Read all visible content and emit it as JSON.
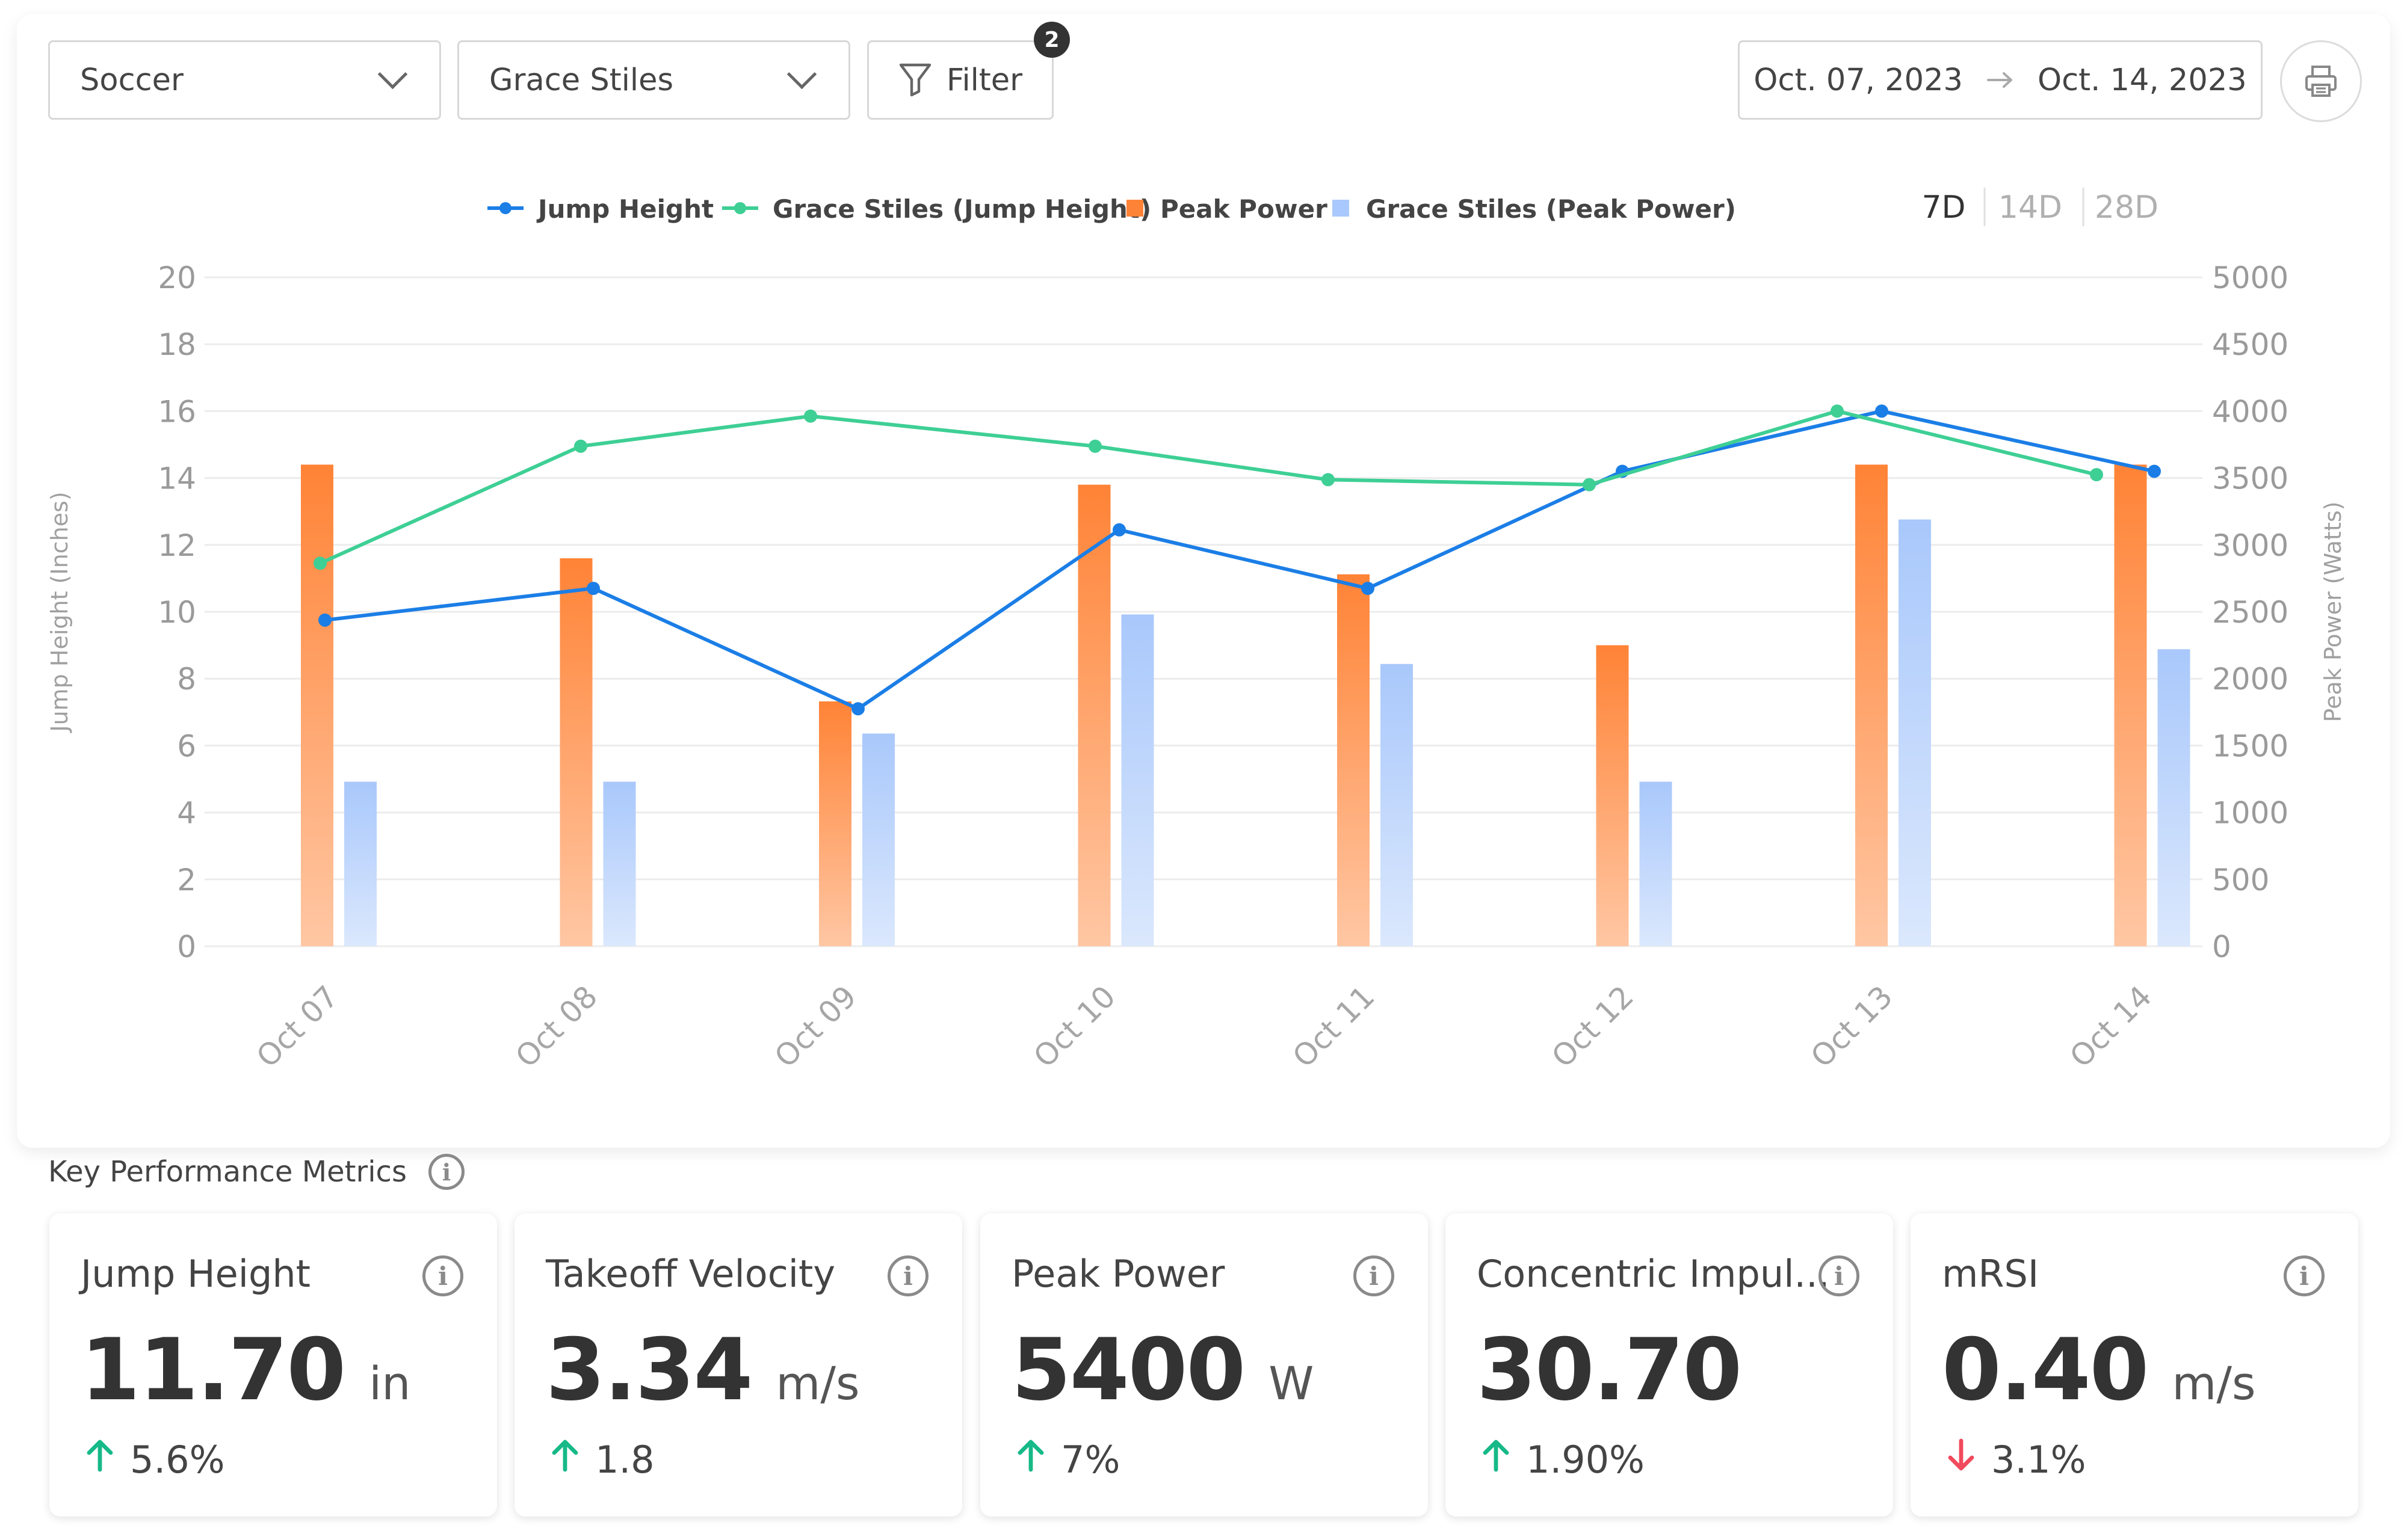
{
  "toolbar": {
    "sport": "Soccer",
    "athlete": "Grace Stiles",
    "filter_label": "Filter",
    "filter_count": "2",
    "date_start": "Oct. 07, 2023",
    "date_end": "Oct. 14, 2023"
  },
  "range_options": [
    "7D",
    "14D",
    "28D"
  ],
  "range_selected": "7D",
  "colors": {
    "jump": "#1b7ee6",
    "grace_jump": "#3ecf95",
    "peak_top": "#ff8336",
    "peak_bottom": "#ffc7a4",
    "grace_peak_top": "#a9c8fb",
    "grace_peak_bottom": "#dbe8fd",
    "up": "#16b987",
    "down": "#f04a5c"
  },
  "chart_data": {
    "type": "bar",
    "categories": [
      "Oct 07",
      "Oct 08",
      "Oct 09",
      "Oct 10",
      "Oct 11",
      "Oct 12",
      "Oct 13",
      "Oct 14"
    ],
    "left_axis": {
      "label": "Jump Height (Inches)",
      "ylim": [
        0,
        20
      ],
      "ticks": [
        "0",
        "2",
        "4",
        "6",
        "8",
        "10",
        "12",
        "14",
        "16",
        "18",
        "20"
      ]
    },
    "right_axis": {
      "label": "Peak Power (Watts)",
      "ylim": [
        0,
        5000
      ],
      "ticks": [
        "0",
        "500",
        "1000",
        "1500",
        "2000",
        "2500",
        "3000",
        "3500",
        "4000",
        "4500",
        "5000"
      ]
    },
    "grid": true,
    "legend_position": "top-center",
    "series": [
      {
        "name": "Jump Height",
        "type": "line",
        "axis": "left",
        "values": [
          9.75,
          10.7,
          7.1,
          12.45,
          10.7,
          14.2,
          16.0,
          14.2
        ]
      },
      {
        "name": "Grace Stiles (Jump Height)",
        "type": "line",
        "axis": "left",
        "values": [
          11.45,
          14.95,
          15.85,
          14.95,
          13.95,
          13.8,
          16.0,
          14.1
        ]
      },
      {
        "name": "Peak Power",
        "type": "bar",
        "axis": "right",
        "values": [
          3600,
          2900,
          1830,
          3450,
          2780,
          2250,
          3600,
          3600
        ]
      },
      {
        "name": "Grace Stiles (Peak Power)",
        "type": "bar",
        "axis": "right",
        "values": [
          1230,
          1230,
          1590,
          2480,
          2110,
          1230,
          3190,
          2220
        ]
      }
    ]
  },
  "metrics_section": {
    "title": "Key Performance Metrics"
  },
  "metrics": [
    {
      "label": "Jump Height",
      "value": "11.70",
      "unit": "in",
      "change": "5.6%",
      "direction": "up"
    },
    {
      "label": "Takeoff Velocity",
      "value": "3.34",
      "unit": "m/s",
      "change": "1.8",
      "direction": "up"
    },
    {
      "label": "Peak Power",
      "value": "5400",
      "unit": "W",
      "change": "7%",
      "direction": "up"
    },
    {
      "label": "Concentric Impul...",
      "value": "30.70",
      "unit": "",
      "change": "1.90%",
      "direction": "up"
    },
    {
      "label": "mRSI",
      "value": "0.40",
      "unit": "m/s",
      "change": "3.1%",
      "direction": "down"
    }
  ]
}
